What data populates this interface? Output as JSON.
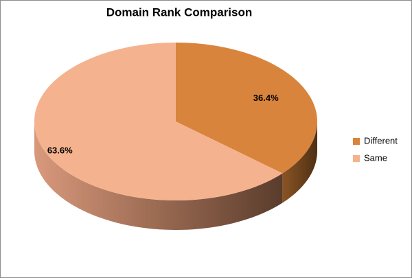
{
  "chart_data": {
    "type": "pie",
    "title": "Domain Rank Comparison",
    "categories": [
      "Different",
      "Same"
    ],
    "values": [
      36.4,
      63.6
    ],
    "value_labels": [
      "36.4%",
      "63.6%"
    ],
    "colors": [
      "#d9843c",
      "#f4b38e"
    ],
    "legend": "right"
  }
}
